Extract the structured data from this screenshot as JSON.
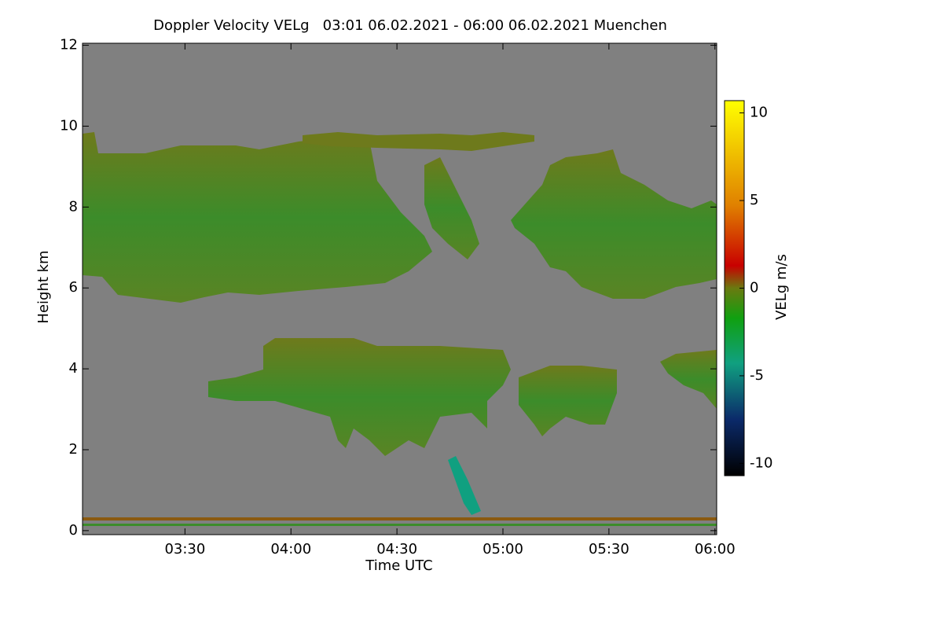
{
  "chart_data": {
    "type": "heatmap",
    "title": "Doppler Velocity VELg   03:01 06.02.2021 - 06:00 06.02.2021 Muenchen",
    "x_label": "Time UTC",
    "y_label": "Height km",
    "colorbar_label": "VELg m/s",
    "xlim": [
      181,
      360.5
    ],
    "xticks": [
      {
        "value": 210,
        "label": "03:30"
      },
      {
        "value": 240,
        "label": "04:00"
      },
      {
        "value": 270,
        "label": "04:30"
      },
      {
        "value": 300,
        "label": "05:00"
      },
      {
        "value": 330,
        "label": "05:30"
      },
      {
        "value": 360,
        "label": "06:00"
      }
    ],
    "ylim": [
      -0.1,
      12.05
    ],
    "yticks": [
      0,
      2,
      4,
      6,
      8,
      10,
      12
    ],
    "clim": [
      -10.7,
      10.7
    ],
    "cticks": [
      -10,
      -5,
      0,
      5,
      10
    ],
    "grid": false
  }
}
